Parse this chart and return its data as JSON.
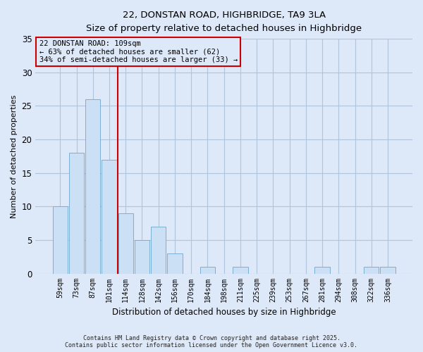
{
  "title_line1": "22, DONSTAN ROAD, HIGHBRIDGE, TA9 3LA",
  "title_line2": "Size of property relative to detached houses in Highbridge",
  "xlabel": "Distribution of detached houses by size in Highbridge",
  "ylabel": "Number of detached properties",
  "bar_labels": [
    "59sqm",
    "73sqm",
    "87sqm",
    "101sqm",
    "114sqm",
    "128sqm",
    "142sqm",
    "156sqm",
    "170sqm",
    "184sqm",
    "198sqm",
    "211sqm",
    "225sqm",
    "239sqm",
    "253sqm",
    "267sqm",
    "281sqm",
    "294sqm",
    "308sqm",
    "322sqm",
    "336sqm"
  ],
  "bar_values": [
    10,
    18,
    26,
    17,
    9,
    5,
    7,
    3,
    0,
    1,
    0,
    1,
    0,
    0,
    0,
    0,
    1,
    0,
    0,
    1,
    1
  ],
  "bar_color": "#cce0f5",
  "bar_edge_color": "#7bafd4",
  "property_line_x": 3.5,
  "property_line_label": "22 DONSTAN ROAD: 109sqm",
  "annotation_line2": "← 63% of detached houses are smaller (62)",
  "annotation_line3": "34% of semi-detached houses are larger (33) →",
  "vline_color": "#cc0000",
  "bg_color": "#dde8f8",
  "grid_color": "#b0c4de",
  "ylim": [
    0,
    35
  ],
  "yticks": [
    0,
    5,
    10,
    15,
    20,
    25,
    30,
    35
  ],
  "footnote_line1": "Contains HM Land Registry data © Crown copyright and database right 2025.",
  "footnote_line2": "Contains public sector information licensed under the Open Government Licence v3.0."
}
